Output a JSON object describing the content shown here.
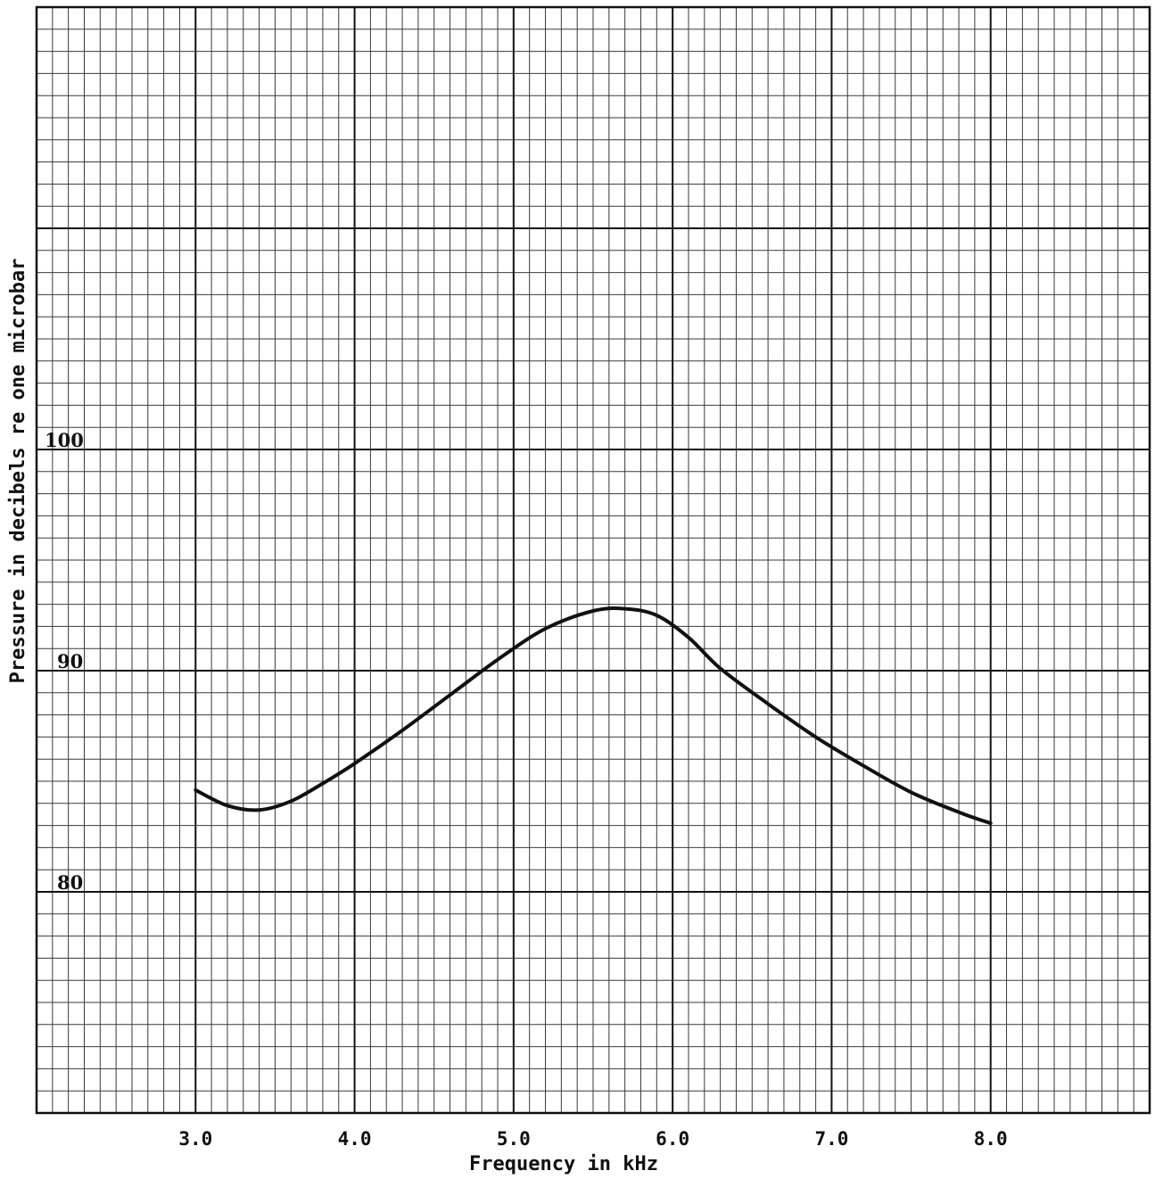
{
  "chart_data": {
    "type": "line",
    "title": "",
    "xlabel": "Frequency in kHz",
    "ylabel": "Pressure in decibels re one microbar",
    "x_ticks": [
      "3.0",
      "4.0",
      "5.0",
      "6.0",
      "7.0",
      "8.0"
    ],
    "y_ticks": [
      {
        "value": 100,
        "label": "100"
      },
      {
        "value": 90,
        "label": "90"
      },
      {
        "value": 80,
        "label": "80"
      }
    ],
    "xlim": [
      2.0,
      9.0
    ],
    "ylim": [
      70,
      120
    ],
    "grid": true,
    "series": [
      {
        "x": [
          3.0,
          3.2,
          3.4,
          3.6,
          3.8,
          4.0,
          4.3,
          4.6,
          4.9,
          5.2,
          5.5,
          5.7,
          5.9,
          6.1,
          6.3,
          6.6,
          6.9,
          7.2,
          7.5,
          7.8,
          8.0
        ],
        "y": [
          84.6,
          83.9,
          83.7,
          84.1,
          84.9,
          85.8,
          87.3,
          88.9,
          90.5,
          91.9,
          92.7,
          92.8,
          92.5,
          91.5,
          90.1,
          88.5,
          87.0,
          85.7,
          84.5,
          83.6,
          83.1
        ]
      }
    ]
  }
}
